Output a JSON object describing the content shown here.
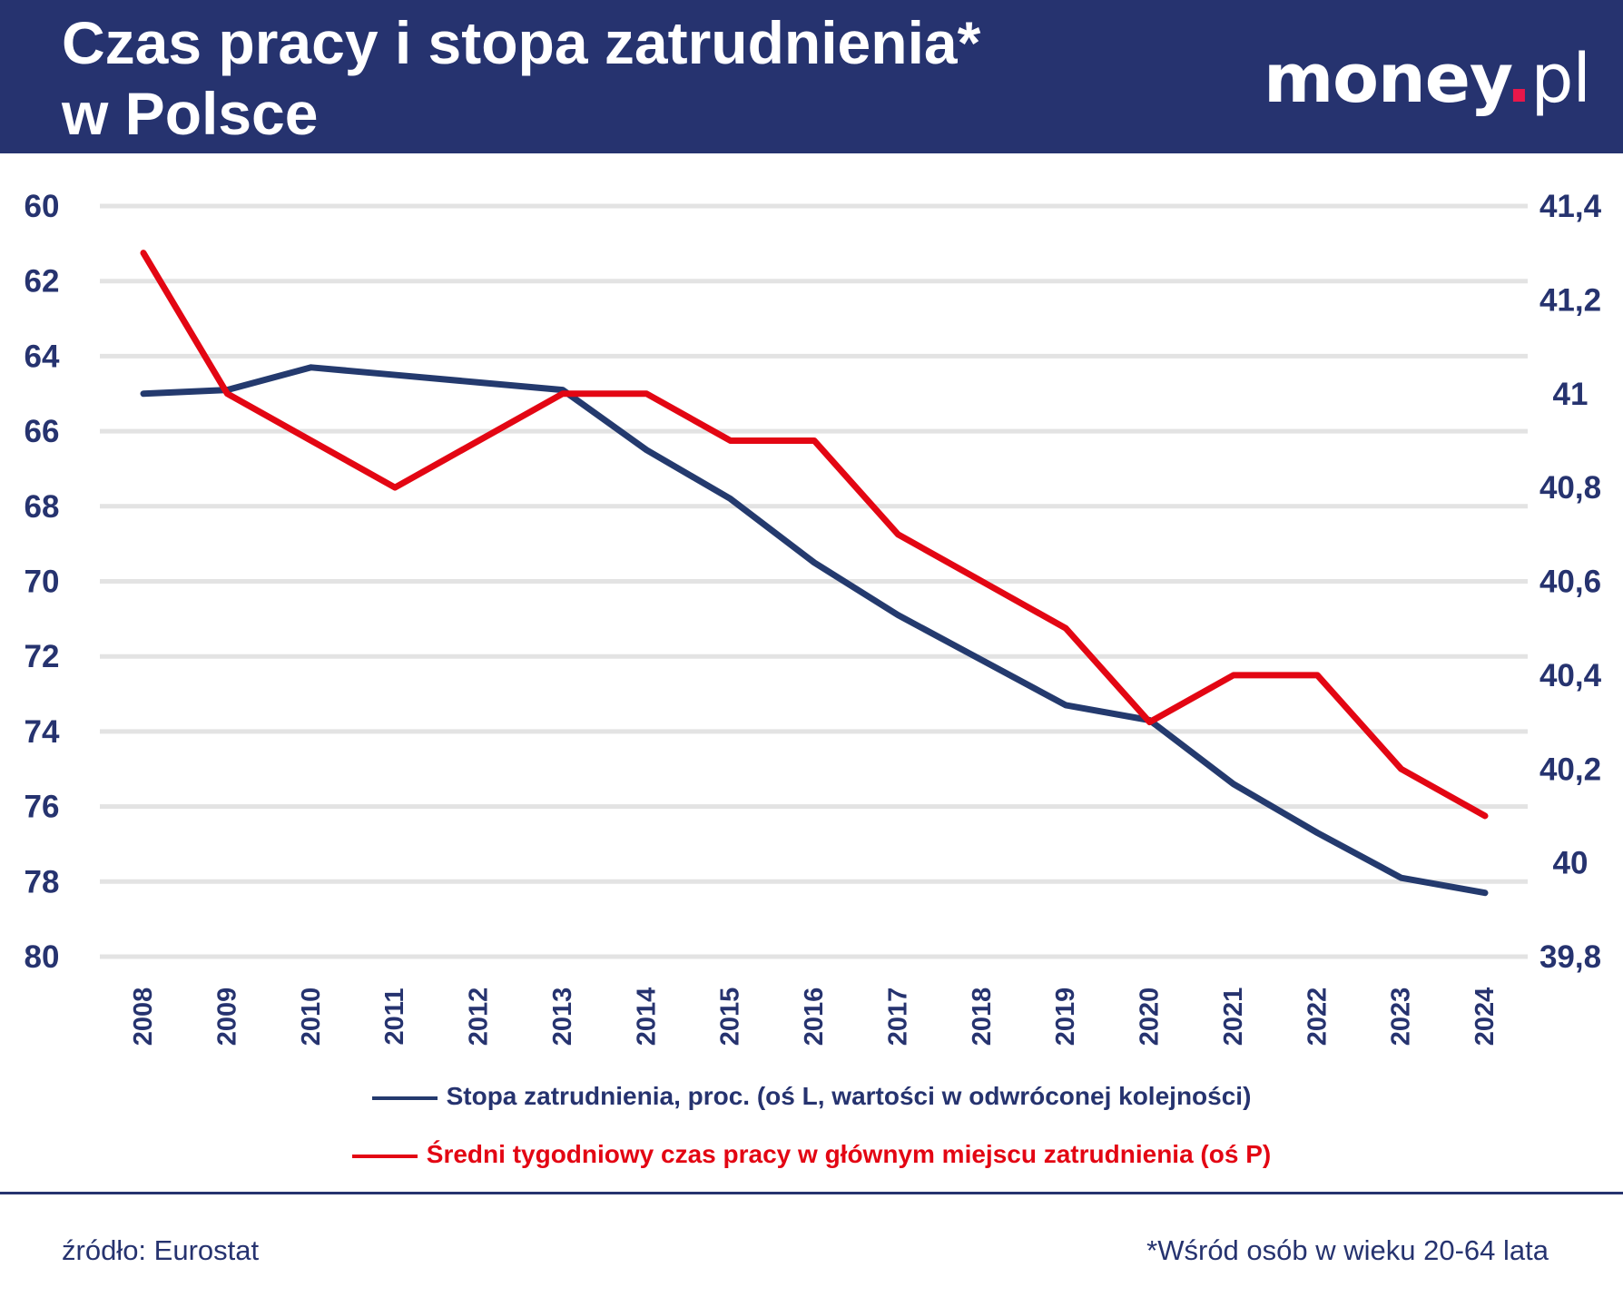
{
  "header": {
    "title_line1": "Czas pracy i stopa zatrudnienia*",
    "title_line2": "w Polsce",
    "logo": "money.pl"
  },
  "chart_data": {
    "type": "line",
    "title": "Czas pracy i stopa zatrudnienia* w Polsce",
    "categories": [
      "2008",
      "2009",
      "2010",
      "2011",
      "2012",
      "2013",
      "2014",
      "2015",
      "2016",
      "2017",
      "2018",
      "2019",
      "2020",
      "2021",
      "2022",
      "2023",
      "2024"
    ],
    "left_axis": {
      "ylim": [
        60,
        80
      ],
      "inverted": true,
      "ticks": [
        "60",
        "62",
        "64",
        "66",
        "68",
        "70",
        "72",
        "74",
        "76",
        "78",
        "80"
      ]
    },
    "right_axis": {
      "ylim": [
        39.8,
        41.4
      ],
      "ticks": [
        "41,4",
        "41,2",
        "41",
        "40,8",
        "40,6",
        "40,4",
        "40,2",
        "40",
        "39,8"
      ]
    },
    "grid": true,
    "legend_placement": "bottom",
    "series": [
      {
        "name": "Stopa zatrudnienia, proc. (oś L, wartości w odwróconej kolejności)",
        "axis": "left",
        "color": "#243a6e",
        "values": [
          65.0,
          64.9,
          64.3,
          64.5,
          64.7,
          64.9,
          66.5,
          67.8,
          69.5,
          70.9,
          72.1,
          73.3,
          73.7,
          75.4,
          76.7,
          77.9,
          78.3
        ]
      },
      {
        "name": "Średni tygodniowy czas pracy w głównym miejscu zatrudnienia (oś P)",
        "axis": "right",
        "color": "#e30613",
        "values": [
          41.3,
          41.0,
          40.9,
          40.8,
          40.9,
          41.0,
          41.0,
          40.9,
          40.9,
          40.7,
          40.6,
          40.5,
          40.3,
          40.4,
          40.4,
          40.2,
          40.1
        ]
      }
    ]
  },
  "footer": {
    "source": "źródło: Eurostat",
    "note": "*Wśród osób w wieku 20-64 lata"
  }
}
